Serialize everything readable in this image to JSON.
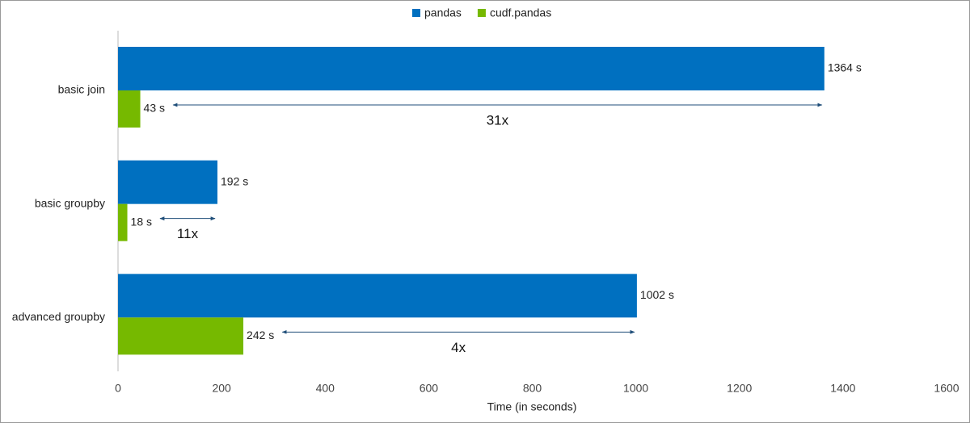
{
  "chart_data": {
    "type": "hbar",
    "categories": [
      "basic join",
      "basic groupby",
      "advanced groupby"
    ],
    "series": [
      {
        "name": "pandas",
        "color": "#0070c0",
        "values": [
          1364,
          192,
          1002
        ],
        "value_labels": [
          "1364 s",
          "192 s",
          "1002 s"
        ]
      },
      {
        "name": "cudf.pandas",
        "color": "#76b900",
        "values": [
          43,
          18,
          242
        ],
        "value_labels": [
          "43 s",
          "18 s",
          "242 s"
        ]
      }
    ],
    "annotations": [
      "31x",
      "11x",
      "4x"
    ],
    "x_label": "Time (in seconds)",
    "xlim": [
      0,
      1600
    ],
    "xticks": [
      0,
      200,
      400,
      600,
      800,
      1000,
      1200,
      1400,
      1600
    ],
    "legend": "top"
  }
}
